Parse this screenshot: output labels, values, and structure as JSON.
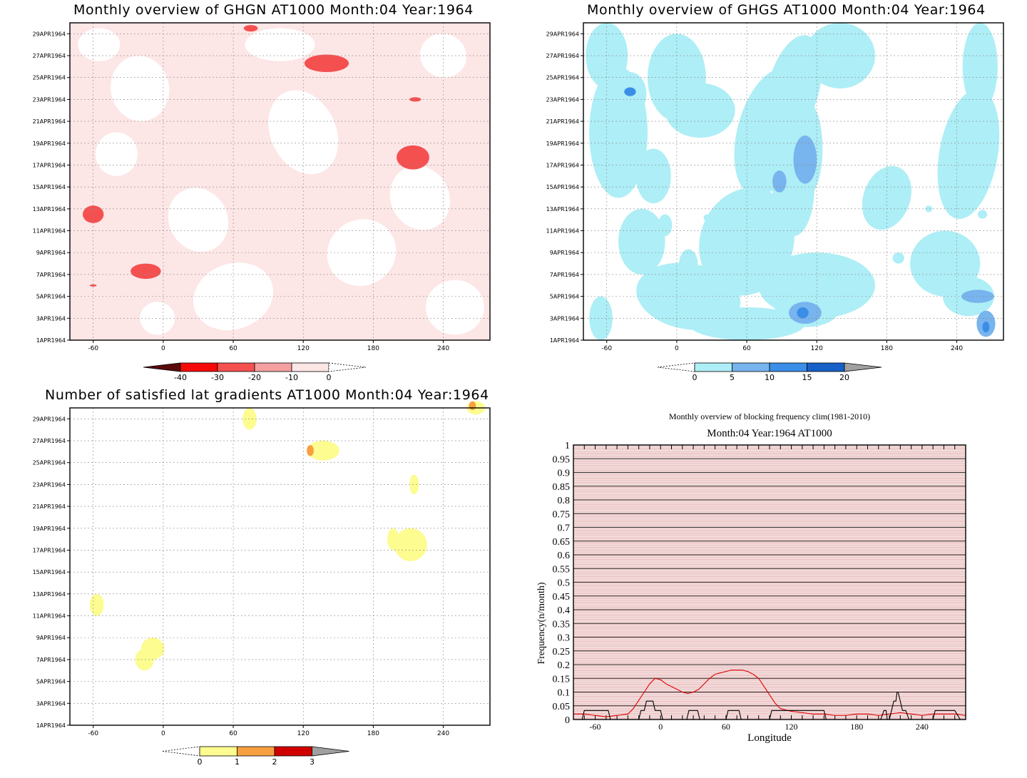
{
  "chart_data": [
    {
      "type": "heatmap",
      "title": "Monthly overview of GHGN AT1000 Month:04 Year:1964",
      "x_ticks": [
        "-60",
        "0",
        "60",
        "120",
        "180",
        "240"
      ],
      "x_tick_values": [
        -60,
        0,
        60,
        120,
        180,
        240
      ],
      "xlim": [
        -80,
        280
      ],
      "y_ticks": [
        "1APR1964",
        "3APR1964",
        "5APR1964",
        "7APR1964",
        "9APR1964",
        "11APR1964",
        "13APR1964",
        "15APR1964",
        "17APR1964",
        "19APR1964",
        "21APR1964",
        "23APR1964",
        "25APR1964",
        "27APR1964",
        "29APR1964"
      ],
      "y_tick_values": [
        1,
        3,
        5,
        7,
        9,
        11,
        13,
        15,
        17,
        19,
        21,
        23,
        25,
        27,
        29
      ],
      "ylim": [
        1,
        30
      ],
      "grid": true,
      "colorbar": {
        "labels": [
          "-40",
          "-30",
          "-20",
          "-10",
          "0"
        ],
        "colors": [
          "#5a0a0a",
          "#f50a0a",
          "#f55050",
          "#f5a0a0",
          "#fde6e6",
          "#ffffff"
        ]
      },
      "patches": [
        {
          "lon": 75,
          "day": 29.5,
          "rlon": 6,
          "rday": 0.3,
          "level": 2
        },
        {
          "lon": 140,
          "day": 26.3,
          "rlon": 19,
          "rday": 0.8,
          "level": 2
        },
        {
          "lon": 216,
          "day": 23.0,
          "rlon": 5,
          "rday": 0.2,
          "level": 2
        },
        {
          "lon": 214,
          "day": 17.7,
          "rlon": 14,
          "rday": 1.1,
          "level": 2
        },
        {
          "lon": -60,
          "day": 12.5,
          "rlon": 9,
          "rday": 0.8,
          "level": 2
        },
        {
          "lon": -15,
          "day": 7.3,
          "rlon": 13,
          "rday": 0.7,
          "level": 2
        },
        {
          "lon": -60,
          "day": 6.0,
          "rlon": 3,
          "rday": 0.1,
          "level": 2
        }
      ]
    },
    {
      "type": "heatmap",
      "title": "Monthly overview of GHGS AT1000 Month:04 Year:1964",
      "x_ticks": [
        "-60",
        "0",
        "60",
        "120",
        "180",
        "240"
      ],
      "x_tick_values": [
        -60,
        0,
        60,
        120,
        180,
        240
      ],
      "xlim": [
        -80,
        280
      ],
      "y_ticks": [
        "1APR1964",
        "3APR1964",
        "5APR1964",
        "7APR1964",
        "9APR1964",
        "11APR1964",
        "13APR1964",
        "15APR1964",
        "17APR1964",
        "19APR1964",
        "21APR1964",
        "23APR1964",
        "25APR1964",
        "27APR1964",
        "29APR1964"
      ],
      "y_tick_values": [
        1,
        3,
        5,
        7,
        9,
        11,
        13,
        15,
        17,
        19,
        21,
        23,
        25,
        27,
        29
      ],
      "ylim": [
        1,
        30
      ],
      "grid": true,
      "colorbar": {
        "labels": [
          "0",
          "5",
          "10",
          "15",
          "20"
        ],
        "colors": [
          "#ffffff",
          "#aeeef6",
          "#78b4ee",
          "#3a8ee8",
          "#1660c8",
          "#a0a0a0"
        ]
      },
      "patches": [
        {
          "lon": -40,
          "day": 23.5,
          "rlon": 14,
          "rday": 2.0,
          "level": 1
        },
        {
          "lon": -40,
          "day": 23.7,
          "rlon": 5,
          "rday": 0.4,
          "level": 3
        },
        {
          "lon": 10,
          "day": 26.0,
          "rlon": 8,
          "rday": 1.2,
          "level": 1
        },
        {
          "lon": 110,
          "day": 18.5,
          "rlon": 15,
          "rday": 4.5,
          "level": 1
        },
        {
          "lon": 100,
          "day": 15.0,
          "rlon": 18,
          "rday": 4.5,
          "level": 1
        },
        {
          "lon": 75,
          "day": 10.5,
          "rlon": 16,
          "rday": 4.0,
          "level": 1
        },
        {
          "lon": 110,
          "day": 17.5,
          "rlon": 10,
          "rday": 2.2,
          "level": 2
        },
        {
          "lon": 88,
          "day": 15.5,
          "rlon": 6,
          "rday": 1.0,
          "level": 2
        },
        {
          "lon": 112,
          "day": 4.0,
          "rlon": 28,
          "rday": 1.8,
          "level": 1
        },
        {
          "lon": 110,
          "day": 3.5,
          "rlon": 14,
          "rday": 1.0,
          "level": 2
        },
        {
          "lon": 108,
          "day": 3.5,
          "rlon": 5,
          "rday": 0.5,
          "level": 3
        },
        {
          "lon": 10,
          "day": 8.0,
          "rlon": 8,
          "rday": 1.3,
          "level": 1
        },
        {
          "lon": -10,
          "day": 11.5,
          "rlon": 6,
          "rday": 1.0,
          "level": 1
        },
        {
          "lon": 250,
          "day": 5.0,
          "rlon": 22,
          "rday": 1.8,
          "level": 1
        },
        {
          "lon": 258,
          "day": 5.0,
          "rlon": 14,
          "rday": 0.6,
          "level": 2
        },
        {
          "lon": 265,
          "day": 2.5,
          "rlon": 8,
          "rday": 1.2,
          "level": 2
        },
        {
          "lon": 265,
          "day": 2.2,
          "rlon": 3,
          "rday": 0.5,
          "level": 3
        },
        {
          "lon": 264,
          "day": 26.5,
          "rlon": 6,
          "rday": 2.0,
          "level": 1
        },
        {
          "lon": 260,
          "day": 23.5,
          "rlon": 5,
          "rday": 1.0,
          "level": 1
        },
        {
          "lon": 235,
          "day": 16.0,
          "rlon": 6,
          "rday": 1.3,
          "level": 1
        },
        {
          "lon": 252,
          "day": 16.5,
          "rlon": 6,
          "rday": 0.6,
          "level": 1
        },
        {
          "lon": 262,
          "day": 12.5,
          "rlon": 4,
          "rday": 0.4,
          "level": 1
        },
        {
          "lon": 190,
          "day": 8.5,
          "rlon": 5,
          "rday": 0.5,
          "level": 1
        },
        {
          "lon": 216,
          "day": 13.0,
          "rlon": 3,
          "rday": 0.3,
          "level": 1
        },
        {
          "lon": 26,
          "day": 12.2,
          "rlon": 3,
          "rday": 0.3,
          "level": 1
        },
        {
          "lon": 118,
          "day": 21.5,
          "rlon": 3,
          "rday": 0.3,
          "level": 1
        },
        {
          "lon": 128,
          "day": 7.0,
          "rlon": 3,
          "rday": 0.3,
          "level": 1
        }
      ]
    },
    {
      "type": "heatmap",
      "title": "Number of satisfied lat gradients AT1000 Month:04 Year:1964",
      "x_ticks": [
        "-60",
        "0",
        "60",
        "120",
        "180",
        "240"
      ],
      "x_tick_values": [
        -60,
        0,
        60,
        120,
        180,
        240
      ],
      "xlim": [
        -80,
        280
      ],
      "y_ticks": [
        "1APR1964",
        "3APR1964",
        "5APR1964",
        "7APR1964",
        "9APR1964",
        "11APR1964",
        "13APR1964",
        "15APR1964",
        "17APR1964",
        "19APR1964",
        "21APR1964",
        "23APR1964",
        "25APR1964",
        "27APR1964",
        "29APR1964"
      ],
      "y_tick_values": [
        1,
        3,
        5,
        7,
        9,
        11,
        13,
        15,
        17,
        19,
        21,
        23,
        25,
        27,
        29
      ],
      "ylim": [
        1,
        30
      ],
      "grid": true,
      "colorbar": {
        "labels": [
          "0",
          "1",
          "2",
          "3"
        ],
        "colors": [
          "#ffffff",
          "#fcfc90",
          "#f8a040",
          "#d00000",
          "#a0a0a0"
        ]
      },
      "patches": [
        {
          "lon": 74,
          "day": 29.0,
          "rlon": 6,
          "rday": 1.0,
          "level": 1
        },
        {
          "lon": 137,
          "day": 26.1,
          "rlon": 14,
          "rday": 0.9,
          "level": 1
        },
        {
          "lon": 126,
          "day": 26.1,
          "rlon": 3,
          "rday": 0.5,
          "level": 2
        },
        {
          "lon": 268,
          "day": 30.0,
          "rlon": 8,
          "rday": 0.6,
          "level": 1
        },
        {
          "lon": 265,
          "day": 30.2,
          "rlon": 3,
          "rday": 0.4,
          "level": 2
        },
        {
          "lon": 215,
          "day": 23.0,
          "rlon": 4,
          "rday": 0.9,
          "level": 1
        },
        {
          "lon": 197,
          "day": 18.0,
          "rlon": 5,
          "rday": 1.0,
          "level": 1
        },
        {
          "lon": 212,
          "day": 17.5,
          "rlon": 14,
          "rday": 1.5,
          "level": 1
        },
        {
          "lon": -57,
          "day": 12.0,
          "rlon": 6,
          "rday": 1.0,
          "level": 1
        },
        {
          "lon": -9,
          "day": 8.0,
          "rlon": 10,
          "rday": 1.0,
          "level": 1
        },
        {
          "lon": -16,
          "day": 7.0,
          "rlon": 8,
          "rday": 1.0,
          "level": 1
        }
      ]
    },
    {
      "type": "line",
      "title": "Monthly overview of blocking frequency clim(1981-2010)",
      "subtitle": "Month:04 Year:1964  AT1000",
      "xlabel": "Longitude",
      "ylabel": "Frequency(n/month)",
      "xlim": [
        -80,
        280
      ],
      "ylim": [
        0,
        1
      ],
      "x_ticks": [
        "-60",
        "0",
        "60",
        "120",
        "180",
        "240"
      ],
      "x_tick_values": [
        -60,
        0,
        60,
        120,
        180,
        240
      ],
      "y_ticks": [
        "0",
        "0.05",
        "0.1",
        "0.15",
        "0.2",
        "0.25",
        "0.3",
        "0.35",
        "0.4",
        "0.45",
        "0.5",
        "0.55",
        "0.6",
        "0.65",
        "0.7",
        "0.75",
        "0.8",
        "0.85",
        "0.9",
        "0.95",
        "1"
      ],
      "y_tick_values": [
        0,
        0.05,
        0.1,
        0.15,
        0.2,
        0.25,
        0.3,
        0.35,
        0.4,
        0.45,
        0.5,
        0.55,
        0.6,
        0.65,
        0.7,
        0.75,
        0.8,
        0.85,
        0.9,
        0.95,
        1
      ],
      "grid": true,
      "series": [
        {
          "color": "#e00000",
          "x": [
            -80,
            -70,
            -60,
            -50,
            -40,
            -30,
            -25,
            -20,
            -15,
            -10,
            -5,
            0,
            5,
            10,
            15,
            20,
            25,
            30,
            35,
            40,
            45,
            50,
            55,
            60,
            65,
            70,
            75,
            80,
            85,
            90,
            95,
            100,
            105,
            110,
            120,
            130,
            140,
            150,
            160,
            170,
            180,
            190,
            200,
            210,
            220,
            230,
            240,
            250,
            260,
            270,
            280
          ],
          "y": [
            0.02,
            0.02,
            0.015,
            0.01,
            0.015,
            0.02,
            0.04,
            0.07,
            0.1,
            0.13,
            0.15,
            0.145,
            0.13,
            0.12,
            0.11,
            0.1,
            0.095,
            0.1,
            0.11,
            0.13,
            0.15,
            0.165,
            0.17,
            0.175,
            0.18,
            0.18,
            0.18,
            0.175,
            0.165,
            0.15,
            0.12,
            0.09,
            0.06,
            0.04,
            0.03,
            0.025,
            0.02,
            0.02,
            0.015,
            0.015,
            0.02,
            0.02,
            0.015,
            0.02,
            0.025,
            0.02,
            0.015,
            0.02,
            0.02,
            0.02,
            0.015
          ]
        },
        {
          "color": "#000000",
          "x": [
            -80,
            -72,
            -70,
            -62,
            -60,
            -48,
            -46,
            -30,
            -28,
            -20,
            -18,
            -15,
            -13,
            -7,
            -5,
            0,
            2,
            20,
            22,
            24,
            26,
            34,
            36,
            60,
            62,
            72,
            74,
            75,
            78,
            80,
            100,
            102,
            112,
            114,
            130,
            132,
            150,
            152,
            155,
            158,
            170,
            172,
            175,
            180,
            182,
            190,
            192,
            200,
            202,
            205,
            207,
            208,
            210,
            214,
            216,
            217,
            218,
            220,
            222,
            225,
            228,
            230,
            250,
            252,
            255,
            268,
            270,
            275,
            280
          ],
          "y": [
            0,
            0,
            0.033,
            0.033,
            0.033,
            0.033,
            0,
            0,
            0,
            0,
            0.033,
            0.033,
            0.067,
            0.067,
            0.033,
            0.033,
            0,
            0,
            0,
            0,
            0.033,
            0.033,
            0,
            0,
            0.033,
            0.033,
            0,
            0,
            0,
            0,
            0,
            0.033,
            0.033,
            0.033,
            0.033,
            0.033,
            0.033,
            0,
            0,
            0,
            0,
            0,
            0,
            0,
            0,
            0,
            0,
            0,
            0,
            0.033,
            0.033,
            0,
            0,
            0.067,
            0.067,
            0.1,
            0.1,
            0.067,
            0.033,
            0.033,
            0,
            0,
            0,
            0.033,
            0.033,
            0.033,
            0.033,
            0,
            0
          ]
        }
      ]
    }
  ]
}
